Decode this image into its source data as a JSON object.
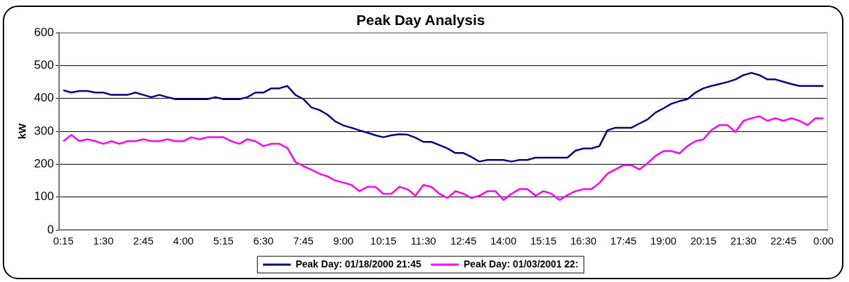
{
  "chart_data": {
    "type": "line",
    "title": "Peak Day Analysis",
    "ylabel": "kW",
    "categories": [
      "0:15",
      null,
      null,
      null,
      null,
      "1:30",
      null,
      null,
      null,
      null,
      "2:45",
      null,
      null,
      null,
      null,
      "4:00",
      null,
      null,
      null,
      null,
      "5:15",
      null,
      null,
      null,
      null,
      "6:30",
      null,
      null,
      null,
      null,
      "7:45",
      null,
      null,
      null,
      null,
      "9:00",
      null,
      null,
      null,
      null,
      "10:15",
      null,
      null,
      null,
      null,
      "11:30",
      null,
      null,
      null,
      null,
      "12:45",
      null,
      null,
      null,
      null,
      "14:00",
      null,
      null,
      null,
      null,
      "15:15",
      null,
      null,
      null,
      null,
      "16:30",
      null,
      null,
      null,
      null,
      "17:45",
      null,
      null,
      null,
      null,
      "19:00",
      null,
      null,
      null,
      null,
      "20:15",
      null,
      null,
      null,
      null,
      "21:30",
      null,
      null,
      null,
      null,
      "22:45",
      null,
      null,
      null,
      null,
      "0:00"
    ],
    "series": [
      {
        "name": "Peak Day: 01/18/2000 21:45",
        "color": "#000080",
        "values": [
          425,
          418,
          423,
          423,
          418,
          418,
          411,
          411,
          411,
          418,
          411,
          404,
          411,
          404,
          398,
          398,
          398,
          398,
          398,
          404,
          398,
          398,
          398,
          404,
          418,
          418,
          431,
          431,
          438,
          411,
          398,
          373,
          365,
          351,
          330,
          318,
          311,
          303,
          296,
          288,
          282,
          288,
          291,
          290,
          281,
          268,
          268,
          258,
          248,
          234,
          234,
          222,
          208,
          213,
          213,
          213,
          208,
          213,
          213,
          220,
          220,
          220,
          220,
          220,
          241,
          248,
          248,
          255,
          303,
          311,
          311,
          311,
          324,
          336,
          357,
          370,
          384,
          392,
          398,
          418,
          431,
          438,
          444,
          450,
          458,
          471,
          478,
          471,
          458,
          458,
          451,
          444,
          438,
          438,
          438,
          438
        ]
      },
      {
        "name": "Peak Day: 01/03/2001 22:",
        "color": "#ff00ff",
        "values": [
          270,
          289,
          270,
          276,
          270,
          262,
          270,
          262,
          270,
          270,
          276,
          270,
          270,
          276,
          270,
          270,
          282,
          276,
          282,
          282,
          282,
          270,
          262,
          276,
          270,
          255,
          262,
          262,
          249,
          207,
          194,
          183,
          171,
          163,
          150,
          144,
          137,
          118,
          131,
          131,
          110,
          110,
          131,
          124,
          104,
          137,
          131,
          110,
          97,
          118,
          110,
          97,
          104,
          118,
          118,
          91,
          110,
          124,
          124,
          104,
          118,
          110,
          91,
          106,
          118,
          124,
          124,
          143,
          171,
          184,
          197,
          197,
          184,
          203,
          225,
          240,
          240,
          233,
          255,
          270,
          276,
          304,
          319,
          319,
          298,
          332,
          340,
          346,
          332,
          340,
          332,
          340,
          332,
          319,
          340,
          340
        ]
      }
    ],
    "ylim": [
      0,
      600
    ],
    "yticks": [
      0,
      100,
      200,
      300,
      400,
      500,
      600
    ],
    "grid": "y",
    "legend": "bottom",
    "marker": "none",
    "line_style": "solid"
  }
}
